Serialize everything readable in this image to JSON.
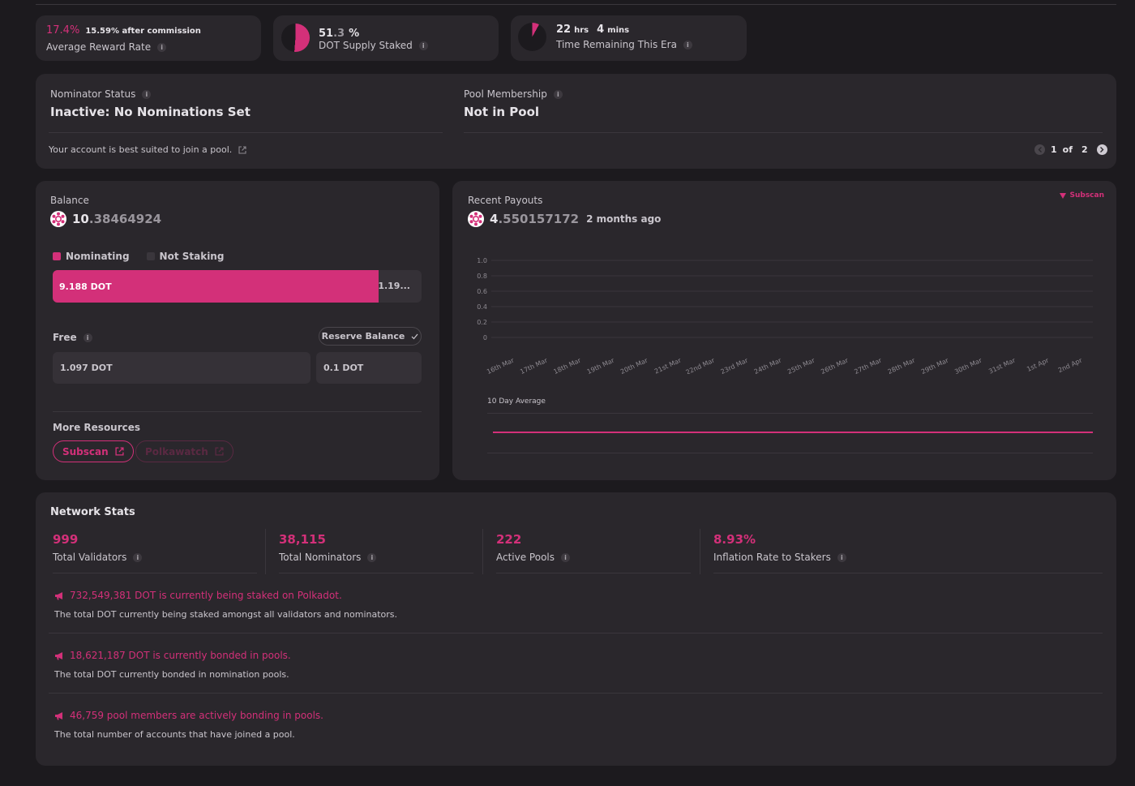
{
  "colors": {
    "accent": "#d33079",
    "card": "#2a272c",
    "background": "#1c1a1e"
  },
  "top_stats": {
    "reward": {
      "rate": "17.4%",
      "after_commission": "15.59% after commission",
      "label": "Average Reward Rate"
    },
    "supply": {
      "value_main": "51",
      "value_frac": ".3",
      "unit": "%",
      "label": "DOT Supply Staked",
      "fraction": 0.513
    },
    "era": {
      "hrs": "22",
      "hrs_unit": "hrs",
      "mins": "4",
      "mins_unit": "mins",
      "label": "Time Remaining This Era",
      "fraction": 0.08
    }
  },
  "status": {
    "nominator_title": "Nominator Status",
    "nominator_value": "Inactive: No Nominations Set",
    "pool_title": "Pool Membership",
    "pool_value": "Not in Pool",
    "hint": "Your account is best suited to join a pool.",
    "pager": {
      "current": "1",
      "of": "of",
      "total": "2"
    }
  },
  "balance": {
    "title": "Balance",
    "amount_int": "10",
    "amount_dec": ".38464924",
    "legend_nominating": "Nominating",
    "legend_not_staking": "Not Staking",
    "bar_nominating": "9.188 DOT",
    "bar_rest": "1.19...",
    "nominating_fraction": 0.884,
    "free_label": "Free",
    "reserve_button": "Reserve Balance",
    "free_value": "1.097 DOT",
    "reserve_value": "0.1 DOT",
    "more_resources": "More Resources",
    "links": {
      "subscan": "Subscan",
      "polkawatch": "Polkawatch"
    }
  },
  "payouts": {
    "title": "Recent Payouts",
    "subscan_link": "Subscan",
    "amount_int": "4",
    "amount_dec": ".550157172",
    "ago": "2 months ago",
    "avg_label": "10 Day Average"
  },
  "chart_data": {
    "type": "bar",
    "ylim": [
      0,
      1.0
    ],
    "yticks": [
      "1.0",
      "0.8",
      "0.6",
      "0.4",
      "0.2",
      "0"
    ],
    "categories": [
      "16th Mar",
      "17th Mar",
      "18th Mar",
      "19th Mar",
      "20th Mar",
      "21st Mar",
      "22nd Mar",
      "23rd Mar",
      "24th Mar",
      "25th Mar",
      "26th Mar",
      "27th Mar",
      "28th Mar",
      "29th Mar",
      "30th Mar",
      "31st Mar",
      "1st Apr",
      "2nd Apr"
    ],
    "values": [
      0,
      0,
      0,
      0,
      0,
      0,
      0,
      0,
      0,
      0,
      0,
      0,
      0,
      0,
      0,
      0,
      0,
      0
    ],
    "grid": true
  },
  "network": {
    "title": "Network Stats",
    "stats": [
      {
        "value": "999",
        "label": "Total Validators"
      },
      {
        "value": "38,115",
        "label": "Total Nominators"
      },
      {
        "value": "222",
        "label": "Active Pools"
      },
      {
        "value": "8.93%",
        "label": "Inflation Rate to Stakers"
      }
    ],
    "notes": [
      {
        "title": "732,549,381 DOT is currently being staked on Polkadot.",
        "text": "The total DOT currently being staked amongst all validators and nominators."
      },
      {
        "title": "18,621,187 DOT is currently bonded in pools.",
        "text": "The total DOT currently bonded in nomination pools."
      },
      {
        "title": "46,759 pool members are actively bonding in pools.",
        "text": "The total number of accounts that have joined a pool."
      }
    ]
  }
}
